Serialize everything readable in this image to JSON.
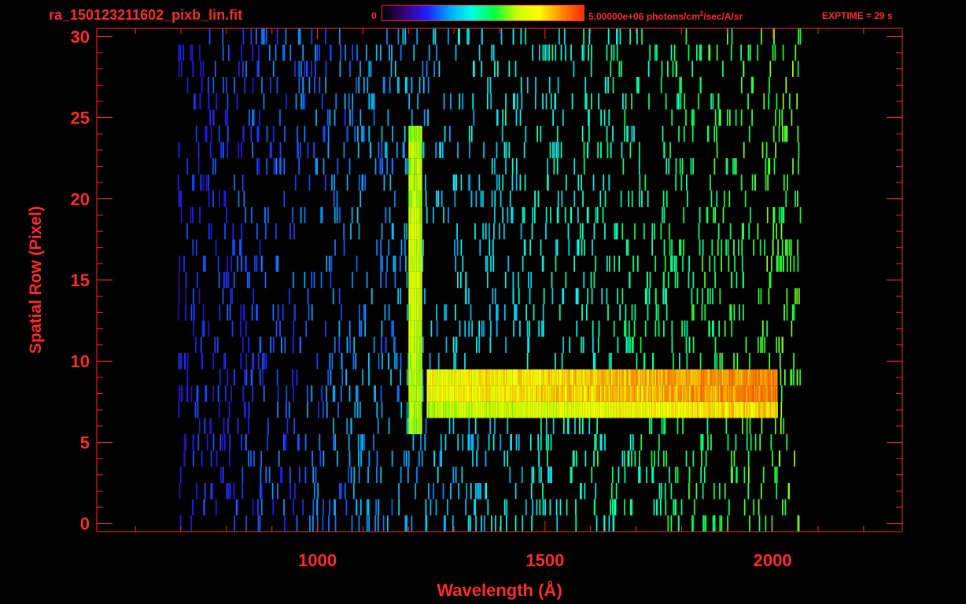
{
  "header": {
    "filename": "ra_150123211602_pixb_lin.fit",
    "colorbar_min": "0",
    "colorbar_max": "5.00000e+06 photons/cm",
    "colorbar_max_sup": "2",
    "colorbar_max_unit": "/sec/A/sr",
    "exptime": "EXPTIME = 29 s"
  },
  "colors": {
    "axis": "#ff2a2a",
    "background": "#000000",
    "colormap": [
      "#000000",
      "#3a0078",
      "#1f1fff",
      "#00a8ff",
      "#00ffe6",
      "#00ff40",
      "#c8ff00",
      "#ffff00",
      "#ff8c00",
      "#ff2a00"
    ]
  },
  "chart_data": {
    "type": "heatmap",
    "title": "ra_150123211602_pixb_lin.fit",
    "xlabel": "Wavelength (Å)",
    "ylabel": "Spatial Row (Pixel)",
    "xlim": [
      515,
      2285
    ],
    "ylim": [
      -0.5,
      30.5
    ],
    "x_ticks": [
      1000,
      1500,
      2000
    ],
    "y_ticks": [
      0,
      5,
      10,
      15,
      20,
      25,
      30
    ],
    "colorbar_range": [
      0,
      5000000
    ],
    "colorbar_units": "photons/cm^2/sec/A/sr",
    "features": [
      {
        "name": "Lyman-alpha column",
        "x_range": [
          1200,
          1230
        ],
        "rows": [
          6,
          24
        ],
        "peak_level": 0.7
      },
      {
        "name": "bright band",
        "x_range": [
          1240,
          2010
        ],
        "rows": [
          7,
          9
        ],
        "level_start": 0.75,
        "level_end": 0.9
      },
      {
        "name": "sparse noise",
        "x_range": [
          690,
          2060
        ],
        "rows": [
          0,
          30
        ],
        "level_start": 0.2,
        "level_end": 0.6
      }
    ]
  }
}
